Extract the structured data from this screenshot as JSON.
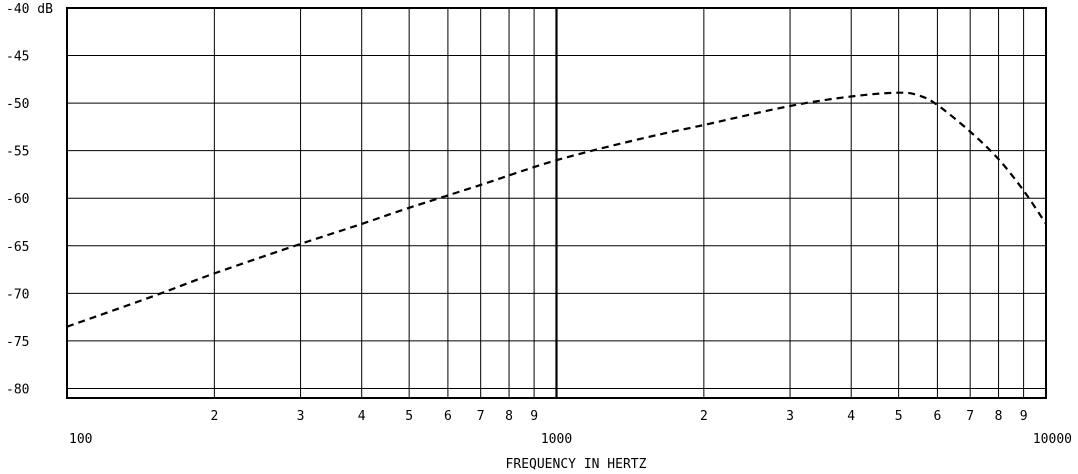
{
  "chart_data": {
    "type": "line",
    "title": "",
    "xlabel": "FREQUENCY IN HERTZ",
    "ylabel": "",
    "x_scale": "log",
    "xlim": [
      100,
      10000
    ],
    "ylim": [
      -81,
      -40
    ],
    "grid": true,
    "x_major_tick_labels": [
      "100",
      "1000",
      "10000"
    ],
    "x_minor_tick_labels": [
      "2",
      "3",
      "4",
      "5",
      "6",
      "7",
      "8",
      "9"
    ],
    "y_tick_labels": [
      "-40 dB",
      "-45",
      "-50",
      "-55",
      "-60",
      "-65",
      "-70",
      "-75",
      "-80"
    ],
    "y_ticks": [
      -40,
      -45,
      -50,
      -55,
      -60,
      -65,
      -70,
      -75,
      -80
    ],
    "series": [
      {
        "style": "dashed",
        "color": "#000000",
        "x": [
          100,
          150,
          200,
          300,
          400,
          500,
          700,
          1000,
          1500,
          2000,
          3000,
          4000,
          5000,
          5500,
          6000,
          7000,
          8000,
          9000,
          10000
        ],
        "y": [
          -73.5,
          -70.3,
          -67.9,
          -64.8,
          -62.7,
          -61.0,
          -58.6,
          -56.0,
          -53.7,
          -52.3,
          -50.3,
          -49.3,
          -48.9,
          -49.2,
          -50.2,
          -53.0,
          -55.9,
          -59.2,
          -62.7
        ]
      }
    ]
  }
}
